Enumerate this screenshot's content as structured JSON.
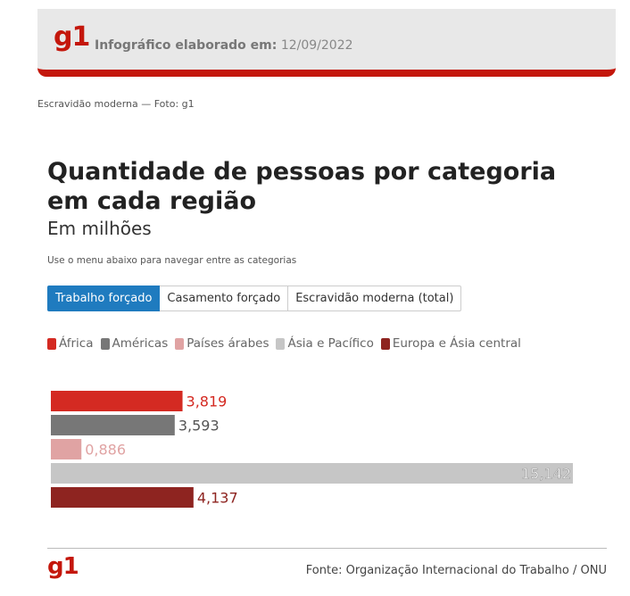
{
  "header": {
    "logo": "g1",
    "made_label": "Infográfico elaborado em:",
    "made_date": "12/09/2022",
    "caption": "Escravidão moderna — Foto: g1"
  },
  "colors": {
    "brand": "#c4170c",
    "tab_active": "#1f7bbf"
  },
  "chart_data": {
    "type": "bar",
    "orientation": "horizontal",
    "title": "Quantidade de pessoas por categoria em cada região",
    "subtitle": "Em milhões",
    "hint": "Use o menu abaixo para navegar entre as categorias",
    "tabs": [
      "Trabalho forçado",
      "Casamento forçado",
      "Escravidão moderna (total)"
    ],
    "active_tab": 0,
    "categories": [
      "África",
      "Américas",
      "Países árabes",
      "Ásia e Pacífico",
      "Europa e Ásia central"
    ],
    "values": [
      3.819,
      3.593,
      0.886,
      15.142,
      4.137
    ],
    "value_labels": [
      "3,819",
      "3,593",
      "0,886",
      "15,142",
      "4,137"
    ],
    "colors": [
      "#d42a22",
      "#777777",
      "#e0a3a3",
      "#c6c6c6",
      "#8e2420"
    ],
    "label_colors": [
      "#d42a22",
      "#555555",
      "#e0a3a3",
      "#ffffff",
      "#8e2420"
    ],
    "xlim": [
      0,
      15.142
    ],
    "grid": false,
    "legend_position": "top"
  },
  "footer": {
    "logo": "g1",
    "source": "Fonte: Organização Internacional do Trabalho / ONU"
  }
}
